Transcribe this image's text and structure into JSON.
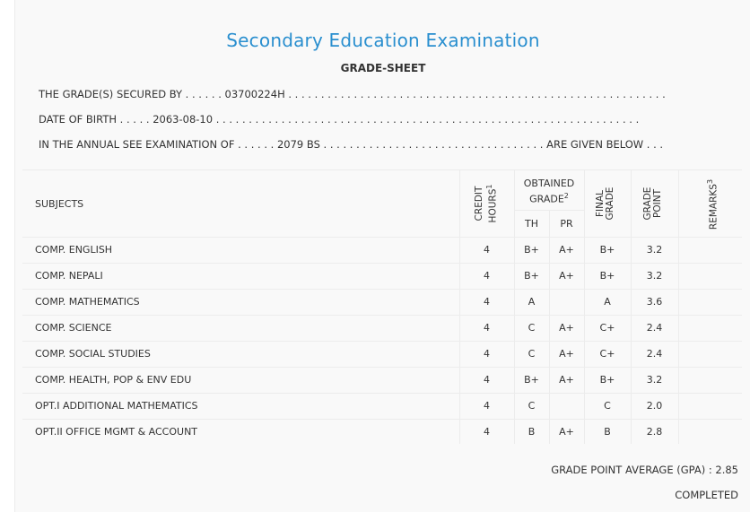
{
  "header": {
    "title": "Secondary Education Examination",
    "subtitle": "GRADE-SHEET",
    "line1": "THE GRADE(S) SECURED BY . . . . . . 03700224H . . . . . . . . . . . . . . . . . . . . . . . . . . . . . . . . . . . . . . . . . . . . . . . . . . . . . . . . . .",
    "line2": "DATE OF BIRTH . . . . . 2063-08-10 . . . . . . . . . . . . . . . . . . . . . . . . . . . . . . . . . . . . . . . . . . . . . . . . . . . . . . . . . . . . . . . . .",
    "line3": "IN THE ANNUAL SEE EXAMINATION OF . . . . . . 2079 BS . . . . . . . . . . . . . . . . . . . . . . . . . . . . . . . . . . ARE GIVEN BELOW . . ."
  },
  "table": {
    "headers": {
      "subjects": "SUBJECTS",
      "credit_line1": "CREDIT",
      "credit_line2": "HOURS",
      "credit_sup": "1",
      "obtained_line1": "OBTAINED",
      "obtained_line2": "GRADE",
      "obtained_sup": "2",
      "th": "TH",
      "pr": "PR",
      "final_line1": "FINAL",
      "final_line2": "GRADE",
      "gp_line1": "GRADE",
      "gp_line2": "POINT",
      "remarks": "REMARKS",
      "remarks_sup": "3"
    },
    "rows": [
      {
        "subject": "COMP. ENGLISH",
        "credit": "4",
        "th": "B+",
        "pr": "A+",
        "final": "B+",
        "gp": "3.2",
        "remarks": ""
      },
      {
        "subject": "COMP. NEPALI",
        "credit": "4",
        "th": "B+",
        "pr": "A+",
        "final": "B+",
        "gp": "3.2",
        "remarks": ""
      },
      {
        "subject": "COMP. MATHEMATICS",
        "credit": "4",
        "th": "A",
        "pr": "",
        "final": "A",
        "gp": "3.6",
        "remarks": ""
      },
      {
        "subject": "COMP. SCIENCE",
        "credit": "4",
        "th": "C",
        "pr": "A+",
        "final": "C+",
        "gp": "2.4",
        "remarks": ""
      },
      {
        "subject": "COMP. SOCIAL STUDIES",
        "credit": "4",
        "th": "C",
        "pr": "A+",
        "final": "C+",
        "gp": "2.4",
        "remarks": ""
      },
      {
        "subject": "COMP. HEALTH, POP & ENV EDU",
        "credit": "4",
        "th": "B+",
        "pr": "A+",
        "final": "B+",
        "gp": "3.2",
        "remarks": ""
      },
      {
        "subject": "OPT.I ADDITIONAL MATHEMATICS",
        "credit": "4",
        "th": "C",
        "pr": "",
        "final": "C",
        "gp": "2.0",
        "remarks": ""
      },
      {
        "subject": "OPT.II OFFICE MGMT & ACCOUNT",
        "credit": "4",
        "th": "B",
        "pr": "A+",
        "final": "B",
        "gp": "2.8",
        "remarks": ""
      }
    ]
  },
  "footer": {
    "gpa": "GRADE POINT AVERAGE (GPA) : 2.85",
    "status": "COMPLETED"
  }
}
